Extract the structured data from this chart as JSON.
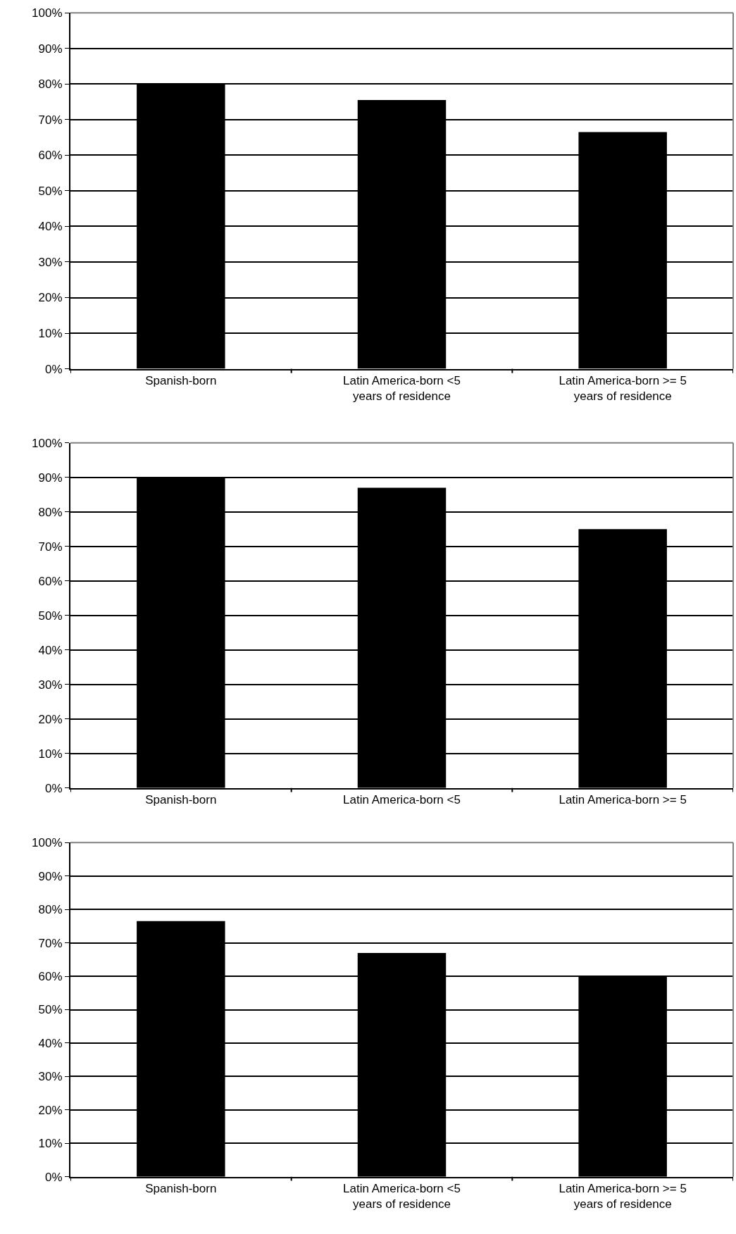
{
  "chart_data": [
    {
      "type": "bar",
      "categories": [
        "Spanish-born",
        "Latin America-born <5 years of residence",
        "Latin America-born >= 5 years of residence"
      ],
      "values": [
        80,
        75.5,
        66.5
      ],
      "color": "#000000",
      "ylim": [
        0,
        100
      ],
      "yticks": [
        {
          "value": 0,
          "label": "0%"
        },
        {
          "value": 10,
          "label": "10%"
        },
        {
          "value": 20,
          "label": "20%"
        },
        {
          "value": 30,
          "label": "30%"
        },
        {
          "value": 40,
          "label": "40%"
        },
        {
          "value": 50,
          "label": "50%"
        },
        {
          "value": 60,
          "label": "60%"
        },
        {
          "value": 70,
          "label": "70%"
        },
        {
          "value": 80,
          "label": "80%"
        },
        {
          "value": 90,
          "label": "90%"
        },
        {
          "value": 100,
          "label": "100%"
        }
      ],
      "grid": "y",
      "legend": false
    },
    {
      "type": "bar",
      "categories": [
        "Spanish-born",
        "Latin America-born <5",
        "Latin America-born >= 5"
      ],
      "values": [
        90,
        87,
        75
      ],
      "color": "#000000",
      "ylim": [
        0,
        100
      ],
      "yticks": [
        {
          "value": 0,
          "label": "0%"
        },
        {
          "value": 10,
          "label": "10%"
        },
        {
          "value": 20,
          "label": "20%"
        },
        {
          "value": 30,
          "label": "30%"
        },
        {
          "value": 40,
          "label": "40%"
        },
        {
          "value": 50,
          "label": "50%"
        },
        {
          "value": 60,
          "label": "60%"
        },
        {
          "value": 70,
          "label": "70%"
        },
        {
          "value": 80,
          "label": "80%"
        },
        {
          "value": 90,
          "label": "90%"
        },
        {
          "value": 100,
          "label": "100%"
        }
      ],
      "grid": "y",
      "legend": false
    },
    {
      "type": "bar",
      "categories": [
        "Spanish-born",
        "Latin America-born <5 years of residence",
        "Latin America-born >= 5 years of residence"
      ],
      "values": [
        76.5,
        67,
        60
      ],
      "color": "#000000",
      "ylim": [
        0,
        100
      ],
      "yticks": [
        {
          "value": 0,
          "label": "0%"
        },
        {
          "value": 10,
          "label": "10%"
        },
        {
          "value": 20,
          "label": "20%"
        },
        {
          "value": 30,
          "label": "30%"
        },
        {
          "value": 40,
          "label": "40%"
        },
        {
          "value": 50,
          "label": "50%"
        },
        {
          "value": 60,
          "label": "60%"
        },
        {
          "value": 70,
          "label": "70%"
        },
        {
          "value": 80,
          "label": "80%"
        },
        {
          "value": 90,
          "label": "90%"
        },
        {
          "value": 100,
          "label": "100%"
        }
      ],
      "grid": "y",
      "legend": false
    }
  ]
}
